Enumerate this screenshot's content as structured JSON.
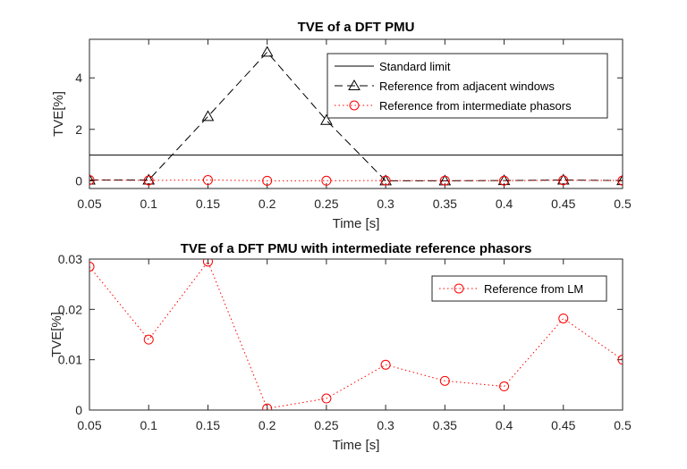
{
  "chart_data": [
    {
      "type": "line",
      "title": "TVE of a DFT PMU",
      "xlabel": "Time [s]",
      "ylabel": "TVE[%]",
      "xlim": [
        0.05,
        0.5
      ],
      "ylim": [
        -0.3,
        5.5
      ],
      "grid": false,
      "legend_placement": "top-right",
      "x": [
        0.05,
        0.1,
        0.15,
        0.2,
        0.25,
        0.3,
        0.35,
        0.4,
        0.45,
        0.5
      ],
      "xticks": [
        "0.05",
        "0.1",
        "0.15",
        "0.2",
        "0.25",
        "0.3",
        "0.35",
        "0.4",
        "0.45",
        "0.5"
      ],
      "yticks": [
        "0",
        "2",
        "4"
      ],
      "ytick_values": [
        0,
        2,
        4
      ],
      "series": [
        {
          "name": "Standard limit",
          "color": "#000000",
          "style": "solid",
          "marker": "none",
          "values": [
            1,
            1,
            1,
            1,
            1,
            1,
            1,
            1,
            1,
            1
          ]
        },
        {
          "name": "Reference from adjacent windows",
          "color": "#000000",
          "style": "dashed",
          "marker": "triangle",
          "values": [
            0.03,
            0.03,
            2.5,
            5.0,
            2.35,
            0.0,
            0.0,
            0.01,
            0.03,
            0.01
          ]
        },
        {
          "name": "Reference from intermediate phasors",
          "color": "#ff0000",
          "style": "dotted",
          "marker": "circle",
          "values": [
            0.0285,
            0.014,
            0.0295,
            0.0003,
            0.0023,
            0.009,
            0.0058,
            0.0047,
            0.0182,
            0.01
          ]
        }
      ]
    },
    {
      "type": "line",
      "title": "TVE of a DFT PMU with intermediate reference phasors",
      "xlabel": "Time [s]",
      "ylabel": "TVE[%]",
      "xlim": [
        0.05,
        0.5
      ],
      "ylim": [
        0,
        0.03
      ],
      "grid": false,
      "legend_placement": "top-right",
      "x": [
        0.05,
        0.1,
        0.15,
        0.2,
        0.25,
        0.3,
        0.35,
        0.4,
        0.45,
        0.5
      ],
      "xticks": [
        "0.05",
        "0.1",
        "0.15",
        "0.2",
        "0.25",
        "0.3",
        "0.35",
        "0.4",
        "0.45",
        "0.5"
      ],
      "yticks": [
        "0",
        "0.01",
        "0.02",
        "0.03"
      ],
      "ytick_values": [
        0,
        0.01,
        0.02,
        0.03
      ],
      "series": [
        {
          "name": "Reference from LM",
          "color": "#ff0000",
          "style": "dotted",
          "marker": "circle",
          "values": [
            0.0285,
            0.014,
            0.0295,
            0.0003,
            0.0023,
            0.009,
            0.0058,
            0.0047,
            0.0182,
            0.01
          ]
        }
      ]
    }
  ]
}
